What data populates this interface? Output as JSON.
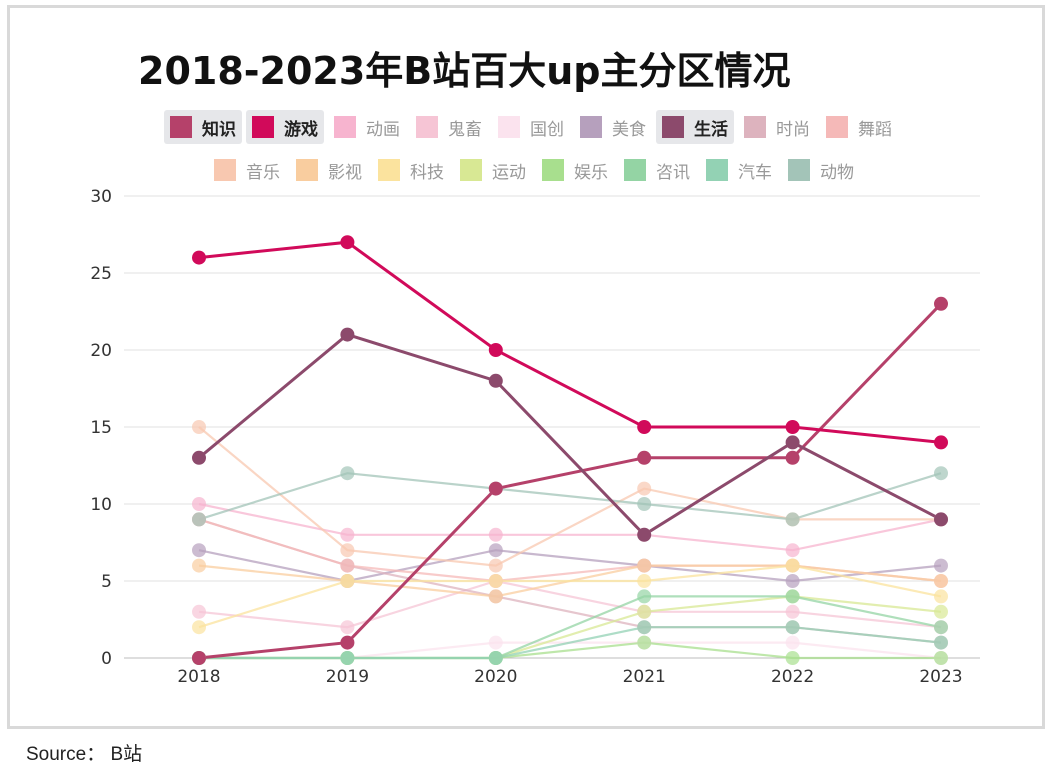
{
  "chart_data": {
    "type": "line",
    "title": "2018-2023年B站百大up主分区情况",
    "xlabel": "",
    "ylabel": "",
    "x": [
      "2018",
      "2019",
      "2020",
      "2021",
      "2022",
      "2023"
    ],
    "yticks": [
      "0",
      "5",
      "10",
      "15",
      "20",
      "25",
      "30"
    ],
    "ylim": [
      0,
      30
    ],
    "grid": true,
    "legend_position": "top",
    "series": [
      {
        "name": "知识",
        "color": "#b5416a",
        "active": true,
        "values": [
          0,
          1,
          11,
          13,
          13,
          23
        ]
      },
      {
        "name": "游戏",
        "color": "#d10a5a",
        "active": true,
        "values": [
          26,
          27,
          20,
          15,
          15,
          14
        ]
      },
      {
        "name": "动画",
        "color": "#f7b4cf",
        "active": false,
        "values": [
          10,
          8,
          8,
          8,
          7,
          9
        ]
      },
      {
        "name": "鬼畜",
        "color": "#f6c5d5",
        "active": false,
        "values": [
          3,
          2,
          5,
          3,
          3,
          2
        ]
      },
      {
        "name": "国创",
        "color": "#fbe3ee",
        "active": false,
        "values": [
          0,
          0,
          1,
          1,
          1,
          0
        ]
      },
      {
        "name": "美食",
        "color": "#b6a0bd",
        "active": false,
        "values": [
          7,
          5,
          7,
          6,
          5,
          6
        ]
      },
      {
        "name": "生活",
        "color": "#8c4a6c",
        "active": true,
        "values": [
          13,
          21,
          18,
          8,
          14,
          9
        ]
      },
      {
        "name": "时尚",
        "color": "#ddb3be",
        "active": false,
        "values": [
          9,
          6,
          4,
          2,
          2,
          1
        ]
      },
      {
        "name": "舞蹈",
        "color": "#f5b9b8",
        "active": false,
        "values": [
          9,
          6,
          5,
          6,
          6,
          5
        ]
      },
      {
        "name": "音乐",
        "color": "#f8c8b0",
        "active": false,
        "values": [
          15,
          7,
          6,
          11,
          9,
          9
        ]
      },
      {
        "name": "影视",
        "color": "#f9cd9f",
        "active": false,
        "values": [
          6,
          5,
          4,
          6,
          6,
          5
        ]
      },
      {
        "name": "科技",
        "color": "#fbe39e",
        "active": false,
        "values": [
          2,
          5,
          5,
          5,
          6,
          4
        ]
      },
      {
        "name": "运动",
        "color": "#d8e894",
        "active": false,
        "values": [
          0,
          0,
          0,
          3,
          4,
          3
        ]
      },
      {
        "name": "娱乐",
        "color": "#a8df8e",
        "active": false,
        "values": [
          0,
          0,
          0,
          1,
          0,
          0
        ]
      },
      {
        "name": "咨讯",
        "color": "#94d4a4",
        "active": false,
        "values": [
          0,
          0,
          0,
          4,
          4,
          2
        ]
      },
      {
        "name": "汽车",
        "color": "#93d2b4",
        "active": false,
        "values": [
          0,
          0,
          0,
          2,
          2,
          1
        ]
      },
      {
        "name": "动物",
        "color": "#a3c4b8",
        "active": false,
        "values": [
          9,
          12,
          11,
          10,
          9,
          12
        ]
      }
    ]
  },
  "source": "Source：  B站"
}
